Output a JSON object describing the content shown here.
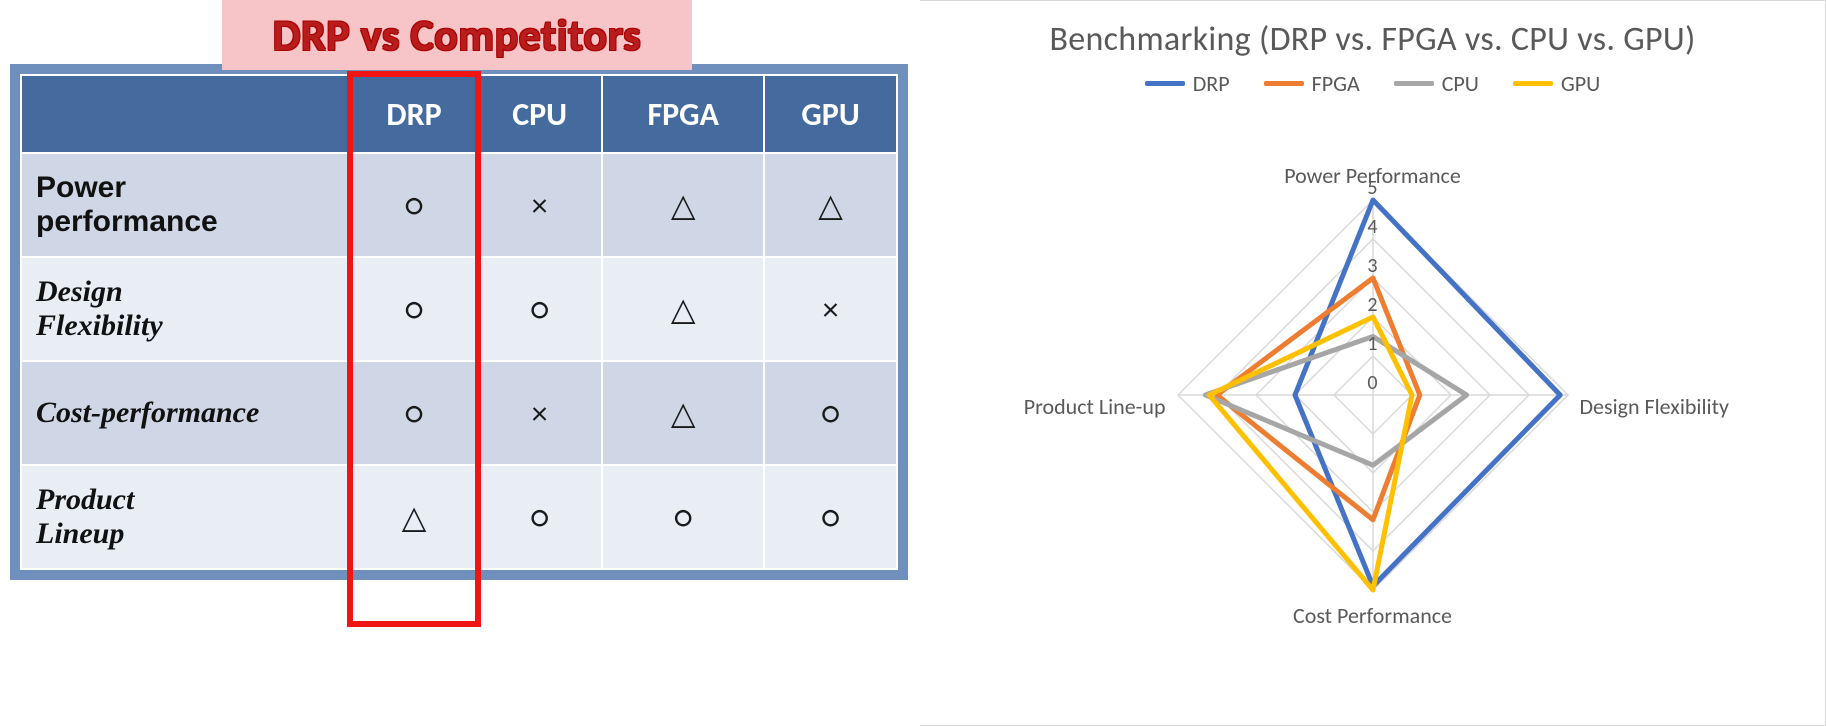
{
  "title": "DRP vs Competitors",
  "title_style": {
    "bg": "#f7c4c7",
    "color": "#b81c1c",
    "fontsize": 44
  },
  "table": {
    "frame_color": "#6f8fbd",
    "header_bg": "#446a9e",
    "header_fg": "#ffffff",
    "row_odd_bg": "#cfd7e6",
    "row_even_bg": "#e9edf4",
    "highlight_column_index": 0,
    "highlight_border_color": "#f01414",
    "columns": [
      "DRP",
      "CPU",
      "FPGA",
      "GPU"
    ],
    "rows": [
      {
        "label": "Power performance",
        "style": "bold-sans",
        "cells": [
          "circle",
          "cross",
          "triangle",
          "triangle"
        ]
      },
      {
        "label": "Design Flexibility",
        "style": "italic-hand",
        "cells": [
          "circle",
          "circle",
          "triangle",
          "cross"
        ]
      },
      {
        "label": "Cost-performance",
        "style": "italic-hand",
        "cells": [
          "circle",
          "cross",
          "triangle",
          "circle"
        ]
      },
      {
        "label": "Product Lineup",
        "style": "italic-hand",
        "cells": [
          "triangle",
          "circle",
          "circle",
          "circle"
        ]
      }
    ],
    "symbols": {
      "circle": "○",
      "cross": "×",
      "triangle": "△"
    }
  },
  "chart": {
    "type": "radar",
    "title": "Benchmarking (DRP vs. FPGA vs. CPU vs. GPU)",
    "title_color": "#595959",
    "title_fontsize": 34,
    "axes": [
      "Power Performance",
      "Design Flexibility",
      "Cost Performance",
      "Product Line-up"
    ],
    "max": 5,
    "rings": [
      0,
      1,
      2,
      3,
      4,
      5
    ],
    "ring_label_positions_deg": 0,
    "grid_color": "#d9d9d9",
    "background": "#ffffff",
    "label_color": "#595959",
    "label_fontsize": 22,
    "line_width": 5,
    "series": [
      {
        "name": "DRP",
        "color": "#4472c4",
        "values": [
          5.0,
          4.8,
          4.9,
          2.0
        ]
      },
      {
        "name": "FPGA",
        "color": "#ed7d31",
        "values": [
          3.0,
          1.2,
          3.2,
          4.0
        ]
      },
      {
        "name": "CPU",
        "color": "#a6a6a6",
        "values": [
          1.5,
          2.4,
          1.8,
          4.3
        ]
      },
      {
        "name": "GPU",
        "color": "#ffc000",
        "values": [
          2.0,
          1.0,
          5.0,
          4.2
        ]
      }
    ],
    "legend_order": [
      "DRP",
      "FPGA",
      "CPU",
      "GPU"
    ]
  }
}
